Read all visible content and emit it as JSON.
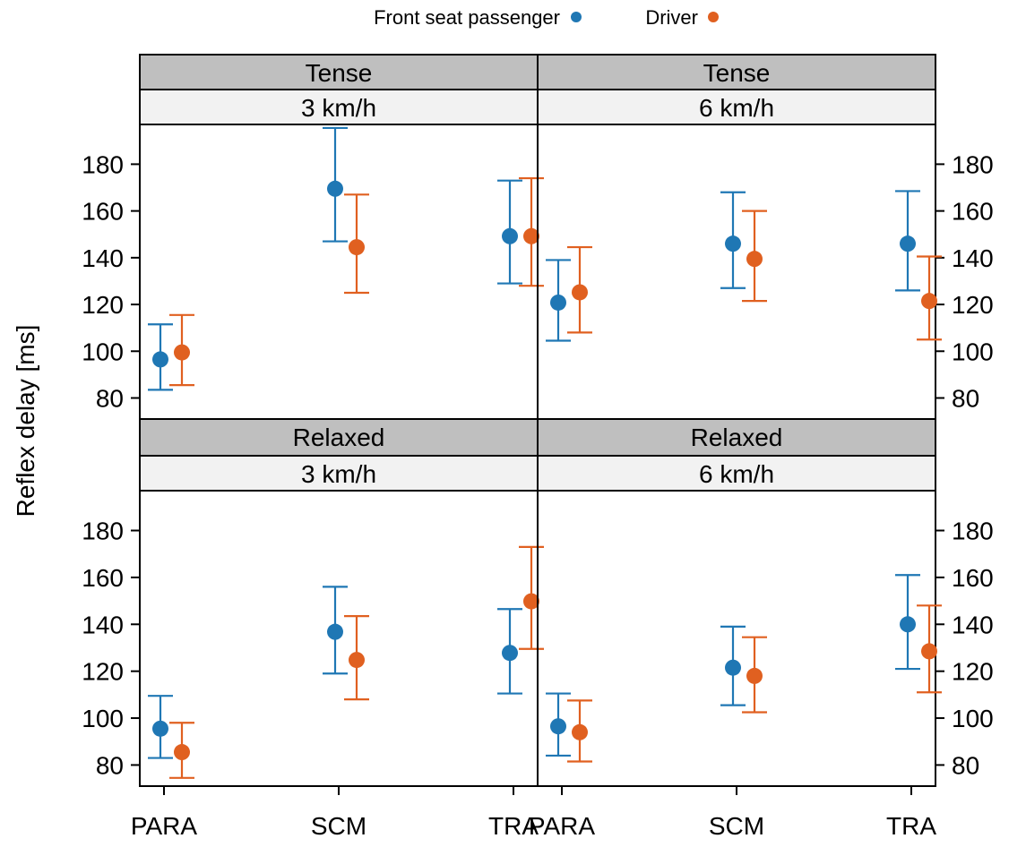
{
  "chart_data": {
    "type": "scatter",
    "subtype": "dot-plot-with-error-bars",
    "ylabel": "Reflex delay [ms]",
    "xlabel": "",
    "title": "",
    "categories": [
      "PARA",
      "SCM",
      "TRA"
    ],
    "yticks": [
      80,
      100,
      120,
      140,
      160,
      180
    ],
    "ylim": [
      71,
      197
    ],
    "grid": false,
    "legend": {
      "placement": "top-center",
      "entries": [
        {
          "name": "Front seat passenger",
          "color": "#1f77b4"
        },
        {
          "name": "Driver",
          "color": "#e06020"
        }
      ]
    },
    "panels": [
      {
        "condition": "Tense",
        "speed": "3 km/h",
        "series": [
          {
            "name": "Front seat passenger",
            "values": [
              96.5,
              169.5,
              149.2
            ],
            "lower": [
              83.5,
              147,
              129
            ],
            "upper": [
              111.5,
              195.5,
              173
            ]
          },
          {
            "name": "Driver",
            "values": [
              99.5,
              144.5,
              149.2
            ],
            "lower": [
              85.5,
              125,
              128
            ],
            "upper": [
              115.5,
              167,
              174
            ]
          }
        ]
      },
      {
        "condition": "Tense",
        "speed": "6 km/h",
        "series": [
          {
            "name": "Front seat passenger",
            "values": [
              120.8,
              146,
              146
            ],
            "lower": [
              104.5,
              127,
              126
            ],
            "upper": [
              139,
              168,
              168.5
            ]
          },
          {
            "name": "Driver",
            "values": [
              125.2,
              139.5,
              121.5
            ],
            "lower": [
              108,
              121.5,
              105
            ],
            "upper": [
              144.5,
              160,
              140.5
            ]
          }
        ]
      },
      {
        "condition": "Relaxed",
        "speed": "3 km/h",
        "series": [
          {
            "name": "Front seat passenger",
            "values": [
              95.5,
              136.8,
              127.8
            ],
            "lower": [
              83,
              119,
              110.5
            ],
            "upper": [
              109.5,
              156,
              146.5
            ]
          },
          {
            "name": "Driver",
            "values": [
              85.5,
              124.8,
              149.8
            ],
            "lower": [
              74.5,
              108,
              129.5
            ],
            "upper": [
              98,
              143.5,
              173
            ]
          }
        ]
      },
      {
        "condition": "Relaxed",
        "speed": "6 km/h",
        "series": [
          {
            "name": "Front seat passenger",
            "values": [
              96.5,
              121.5,
              140
            ],
            "lower": [
              84,
              105.5,
              121
            ],
            "upper": [
              110.5,
              139,
              161
            ]
          },
          {
            "name": "Driver",
            "values": [
              94,
              118,
              128.5
            ],
            "lower": [
              81.5,
              102.5,
              111
            ],
            "upper": [
              107.5,
              134.5,
              148
            ]
          }
        ]
      }
    ]
  }
}
